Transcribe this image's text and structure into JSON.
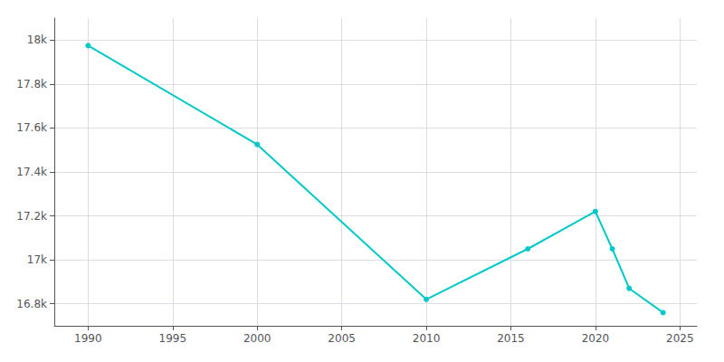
{
  "chart_data": {
    "type": "line",
    "x": [
      1990,
      2000,
      2010,
      2016,
      2020,
      2021,
      2022,
      2024
    ],
    "values": [
      17975,
      17525,
      16820,
      17050,
      17220,
      17050,
      16870,
      16760
    ],
    "color": "#00C8C8",
    "marker": "circle",
    "xlim": [
      1988,
      2026
    ],
    "xticks": [
      1990,
      1995,
      2000,
      2005,
      2010,
      2015,
      2020,
      2025
    ],
    "ylim": [
      16700,
      18100
    ],
    "yticks": [
      {
        "value": 16800,
        "label": "16.8k"
      },
      {
        "value": 17000,
        "label": "17k"
      },
      {
        "value": 17200,
        "label": "17.2k"
      },
      {
        "value": 17400,
        "label": "17.4k"
      },
      {
        "value": 17600,
        "label": "17.6k"
      },
      {
        "value": 17800,
        "label": "17.8k"
      },
      {
        "value": 18000,
        "label": "18k"
      }
    ],
    "grid": true
  }
}
